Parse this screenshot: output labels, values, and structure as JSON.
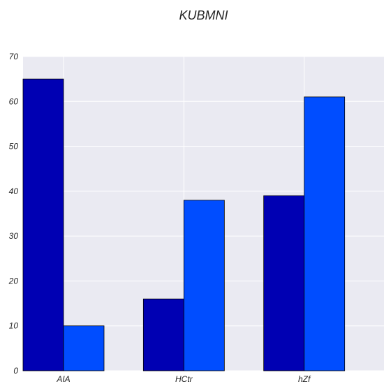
{
  "chart_data": {
    "type": "bar",
    "title": "KUBMNI",
    "xlabel": "",
    "ylabel": "",
    "categories": [
      "AIA",
      "HCtr",
      "hZf"
    ],
    "series": [
      {
        "values": [
          65,
          16,
          39
        ],
        "color": "#0000b3"
      },
      {
        "values": [
          10,
          38,
          61
        ],
        "color": "#004dff"
      }
    ],
    "ylim": [
      0,
      70
    ],
    "yticks": [
      0,
      10,
      20,
      30,
      40,
      50,
      60,
      70
    ],
    "grid": true,
    "legend": "none",
    "background": "#eaeaf2",
    "grid_color": "#ffffff"
  }
}
